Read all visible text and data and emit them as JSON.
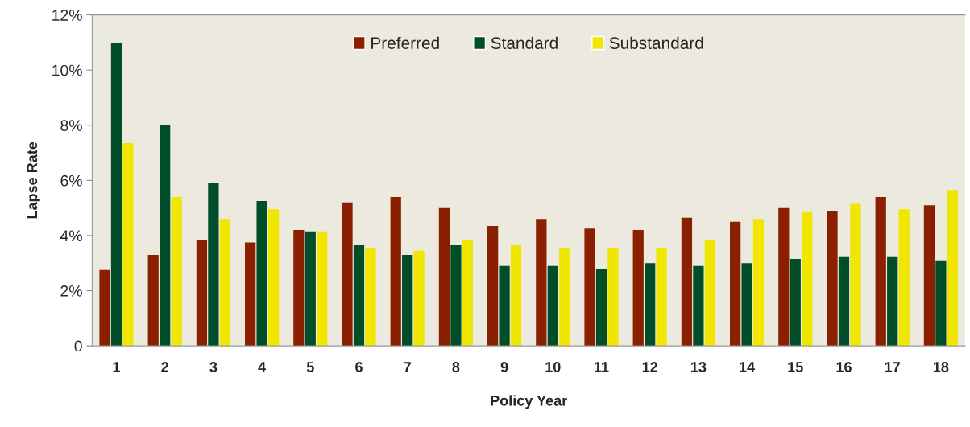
{
  "chart_data": {
    "type": "bar",
    "xlabel": "Policy Year",
    "ylabel": "Lapse Rate",
    "categories": [
      "1",
      "2",
      "3",
      "4",
      "5",
      "6",
      "7",
      "8",
      "9",
      "10",
      "11",
      "12",
      "13",
      "14",
      "15",
      "16",
      "17",
      "18"
    ],
    "series": [
      {
        "name": "Preferred",
        "color": "#8b2000",
        "values": [
          2.75,
          3.3,
          3.85,
          3.75,
          4.2,
          5.2,
          5.4,
          5.0,
          4.35,
          4.6,
          4.25,
          4.2,
          4.65,
          4.5,
          5.0,
          4.9,
          5.4,
          5.1
        ]
      },
      {
        "name": "Standard",
        "color": "#004d2a",
        "values": [
          11.0,
          8.0,
          5.9,
          5.25,
          4.15,
          3.65,
          3.3,
          3.65,
          2.9,
          2.9,
          2.8,
          3.0,
          2.9,
          3.0,
          3.15,
          3.25,
          3.25,
          3.1
        ]
      },
      {
        "name": "Substandard",
        "color": "#f0e600",
        "values": [
          7.35,
          5.4,
          4.6,
          4.95,
          4.15,
          3.55,
          3.45,
          3.85,
          3.65,
          3.55,
          3.55,
          3.55,
          3.85,
          4.6,
          4.85,
          5.15,
          4.95,
          5.65
        ]
      }
    ],
    "ylim": [
      0,
      12
    ],
    "yticks": [
      0,
      {
        "value": 2,
        "label": "2%"
      },
      {
        "value": 4,
        "label": "4%"
      },
      {
        "value": 6,
        "label": "6%"
      },
      {
        "value": 8,
        "label": "8%"
      },
      {
        "value": 10,
        "label": "10%"
      },
      {
        "value": 12,
        "label": "12%"
      }
    ],
    "grid": false,
    "legend": "top"
  }
}
